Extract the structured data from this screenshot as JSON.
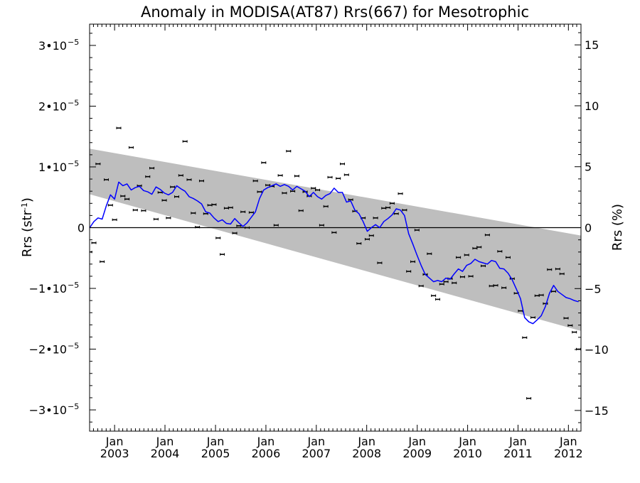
{
  "chart_data": {
    "type": "scatter",
    "title": "Anomaly in MODISA(AT87) Rrs(667) for Mesotrophic",
    "ylabel_left_base": "Rrs (str",
    "ylabel_left_sup": "-1",
    "ylabel_left_close": ")",
    "ylabel_right": "Rrs (%)",
    "xlim": [
      "2002-07-04",
      "2012-04-01"
    ],
    "ylim": [
      -3.35e-05,
      3.35e-05
    ],
    "y2lim": [
      -16.7,
      16.7
    ],
    "x_ticks": [
      {
        "date": "2003-01-01",
        "month": "Jan",
        "year": "2003"
      },
      {
        "date": "2004-01-01",
        "month": "Jan",
        "year": "2004"
      },
      {
        "date": "2005-01-01",
        "month": "Jan",
        "year": "2005"
      },
      {
        "date": "2006-01-01",
        "month": "Jan",
        "year": "2006"
      },
      {
        "date": "2007-01-01",
        "month": "Jan",
        "year": "2007"
      },
      {
        "date": "2008-01-01",
        "month": "Jan",
        "year": "2008"
      },
      {
        "date": "2009-01-01",
        "month": "Jan",
        "year": "2009"
      },
      {
        "date": "2010-01-01",
        "month": "Jan",
        "year": "2010"
      },
      {
        "date": "2011-01-01",
        "month": "Jan",
        "year": "2011"
      },
      {
        "date": "2012-01-01",
        "month": "Jan",
        "year": "2012"
      }
    ],
    "y_ticks": [
      {
        "value": 3e-05,
        "text": "3•10",
        "exp": "−5"
      },
      {
        "value": 2e-05,
        "text": "2•10",
        "exp": "−5"
      },
      {
        "value": 1e-05,
        "text": "1•10",
        "exp": "−5"
      },
      {
        "value": 0,
        "text": "0",
        "exp": ""
      },
      {
        "value": -1e-05,
        "text": "−1•10",
        "exp": "−5"
      },
      {
        "value": -2e-05,
        "text": "−2•10",
        "exp": "−5"
      },
      {
        "value": -3e-05,
        "text": "−3•10",
        "exp": "−5"
      }
    ],
    "y2_ticks": [
      {
        "value": 15,
        "text": "15"
      },
      {
        "value": 10,
        "text": "10"
      },
      {
        "value": 5,
        "text": "5"
      },
      {
        "value": 0,
        "text": "0"
      },
      {
        "value": -5,
        "text": "−5"
      },
      {
        "value": -10,
        "text": "−10"
      },
      {
        "value": -15,
        "text": "−15"
      }
    ],
    "band": {
      "x": [
        "2002-07-04",
        "2012-04-01"
      ],
      "upper": [
        1.3e-05,
        -1.3e-06
      ],
      "lower": [
        5.5e-06,
        -1.7e-05
      ]
    },
    "zero_line": 0,
    "series": [
      {
        "style": "points-with-errorbars",
        "color": "#000000",
        "error": 2e-07,
        "x": [
          "2002-07-05",
          "2002-08-04",
          "2002-09-03",
          "2002-10-03",
          "2002-11-02",
          "2002-12-02",
          "2003-01-01",
          "2003-01-31",
          "2003-03-02",
          "2003-04-01",
          "2003-05-01",
          "2003-05-31",
          "2003-06-30",
          "2003-07-30",
          "2003-08-29",
          "2003-09-28",
          "2003-10-28",
          "2003-11-27",
          "2003-12-27",
          "2004-01-26",
          "2004-02-25",
          "2004-03-26",
          "2004-04-25",
          "2004-05-25",
          "2004-06-24",
          "2004-07-24",
          "2004-08-23",
          "2004-09-22",
          "2004-10-22",
          "2004-11-21",
          "2004-12-21",
          "2005-01-20",
          "2005-02-19",
          "2005-03-21",
          "2005-04-20",
          "2005-05-20",
          "2005-06-19",
          "2005-07-19",
          "2005-08-18",
          "2005-09-17",
          "2005-10-17",
          "2005-11-16",
          "2005-12-16",
          "2006-01-15",
          "2006-02-14",
          "2006-03-16",
          "2006-04-15",
          "2006-05-15",
          "2006-06-14",
          "2006-07-14",
          "2006-08-13",
          "2006-09-12",
          "2006-10-12",
          "2006-11-11",
          "2006-12-11",
          "2007-01-10",
          "2007-02-09",
          "2007-03-11",
          "2007-04-10",
          "2007-05-10",
          "2007-06-09",
          "2007-07-09",
          "2007-08-08",
          "2007-09-07",
          "2007-10-07",
          "2007-11-06",
          "2007-12-06",
          "2008-01-05",
          "2008-02-04",
          "2008-03-05",
          "2008-04-04",
          "2008-05-04",
          "2008-06-03",
          "2008-07-03",
          "2008-08-02",
          "2008-09-01",
          "2008-10-01",
          "2008-10-31",
          "2008-11-30",
          "2008-12-30",
          "2009-01-29",
          "2009-02-28",
          "2009-03-30",
          "2009-04-29",
          "2009-05-29",
          "2009-06-28",
          "2009-07-28",
          "2009-08-27",
          "2009-09-26",
          "2009-10-26",
          "2009-11-25",
          "2009-12-25",
          "2010-01-24",
          "2010-02-23",
          "2010-03-25",
          "2010-04-24",
          "2010-05-24",
          "2010-06-23",
          "2010-07-23",
          "2010-08-22",
          "2010-09-21",
          "2010-10-21",
          "2010-11-20",
          "2010-12-20",
          "2011-01-19",
          "2011-02-18",
          "2011-03-20",
          "2011-04-19",
          "2011-05-19",
          "2011-06-18",
          "2011-07-18",
          "2011-08-17",
          "2011-09-16",
          "2011-10-16",
          "2011-11-15",
          "2011-12-15",
          "2012-01-14",
          "2012-02-13",
          "2012-03-14"
        ],
        "y": [
          -4e-06,
          -2.5e-06,
          1.05e-05,
          -5.6e-06,
          7.9e-06,
          3.7e-06,
          1.3e-06,
          1.64e-05,
          5.2e-06,
          4.7e-06,
          1.32e-05,
          2.9e-06,
          6.9e-06,
          2.8e-06,
          8.4e-06,
          9.8e-06,
          1.4e-06,
          5.8e-06,
          4.5e-06,
          1.6e-06,
          6.7e-06,
          5.1e-06,
          8.6e-06,
          1.42e-05,
          7.9e-06,
          2.4e-06,
          1e-07,
          7.7e-06,
          2.3e-06,
          3.7e-06,
          3.8e-06,
          -1.7e-06,
          -4.4e-06,
          3.2e-06,
          3.3e-06,
          -9e-07,
          3e-07,
          2.6e-06,
          0.0,
          2.5e-06,
          7.7e-06,
          5.9e-06,
          1.07e-05,
          7e-06,
          6.8e-06,
          4e-07,
          8.6e-06,
          5.7e-06,
          1.26e-05,
          6e-06,
          8.5e-06,
          2.8e-06,
          5.9e-06,
          5.2e-06,
          6.5e-06,
          6.2e-06,
          4e-07,
          3.5e-06,
          8.3e-06,
          -8e-07,
          8.1e-06,
          1.05e-05,
          8.7e-06,
          4.6e-06,
          2.7e-06,
          -2.6e-06,
          1.6e-06,
          -1.9e-06,
          -1.3e-06,
          1.6e-06,
          -5.8e-06,
          3.2e-06,
          3.3e-06,
          4e-06,
          2.3e-06,
          5.6e-06,
          2.9e-06,
          -7.2e-06,
          -5.6e-06,
          -4e-07,
          -9.6e-06,
          -7.7e-06,
          -4.3e-06,
          -1.12e-05,
          -1.18e-05,
          -9.3e-06,
          -8.9e-06,
          -8.4e-06,
          -9.1e-06,
          -4.9e-06,
          -8.1e-06,
          -4.5e-06,
          -8e-06,
          -3.4e-06,
          -3.2e-06,
          -6.3e-06,
          -1.2e-06,
          -9.6e-06,
          -9.5e-06,
          -3.9e-06,
          -9.9e-06,
          -4.9e-06,
          -8.4e-06,
          -1.08e-05,
          -1.37e-05,
          -1.81e-05,
          -2.81e-05,
          -1.48e-05,
          -1.12e-05,
          -1.11e-05,
          -1.25e-05,
          -6.9e-06,
          -1.05e-05,
          -6.8e-06,
          -7.6e-06,
          -1.49e-05,
          -1.61e-05,
          -1.72e-05,
          -2e-05
        ]
      },
      {
        "style": "line",
        "color": "#0000ff",
        "x": [
          "2002-07-05",
          "2002-08-04",
          "2002-09-03",
          "2002-10-03",
          "2002-11-02",
          "2002-12-02",
          "2003-01-01",
          "2003-01-31",
          "2003-03-02",
          "2003-04-01",
          "2003-05-01",
          "2003-05-31",
          "2003-06-30",
          "2003-07-30",
          "2003-08-29",
          "2003-09-28",
          "2003-10-28",
          "2003-11-27",
          "2003-12-27",
          "2004-01-26",
          "2004-02-25",
          "2004-03-26",
          "2004-04-25",
          "2004-05-25",
          "2004-06-24",
          "2004-07-24",
          "2004-08-23",
          "2004-09-22",
          "2004-10-22",
          "2004-11-21",
          "2004-12-21",
          "2005-01-20",
          "2005-02-19",
          "2005-03-21",
          "2005-04-20",
          "2005-05-20",
          "2005-06-19",
          "2005-07-19",
          "2005-08-18",
          "2005-09-17",
          "2005-10-17",
          "2005-11-16",
          "2005-12-16",
          "2006-01-15",
          "2006-02-14",
          "2006-03-16",
          "2006-04-15",
          "2006-05-15",
          "2006-06-14",
          "2006-07-14",
          "2006-08-13",
          "2006-09-12",
          "2006-10-12",
          "2006-11-11",
          "2006-12-11",
          "2007-01-10",
          "2007-02-09",
          "2007-03-11",
          "2007-04-10",
          "2007-05-10",
          "2007-06-09",
          "2007-07-09",
          "2007-08-08",
          "2007-09-07",
          "2007-10-07",
          "2007-11-06",
          "2007-12-06",
          "2008-01-05",
          "2008-02-04",
          "2008-03-05",
          "2008-04-04",
          "2008-05-04",
          "2008-06-03",
          "2008-07-03",
          "2008-08-02",
          "2008-09-01",
          "2008-10-01",
          "2008-10-31",
          "2008-11-30",
          "2008-12-30",
          "2009-01-29",
          "2009-02-28",
          "2009-03-30",
          "2009-04-29",
          "2009-05-29",
          "2009-06-28",
          "2009-07-28",
          "2009-08-27",
          "2009-09-26",
          "2009-10-26",
          "2009-11-25",
          "2009-12-25",
          "2010-01-24",
          "2010-02-23",
          "2010-03-25",
          "2010-04-24",
          "2010-05-24",
          "2010-06-23",
          "2010-07-23",
          "2010-08-22",
          "2010-09-21",
          "2010-10-21",
          "2010-11-20",
          "2010-12-20",
          "2011-01-19",
          "2011-02-18",
          "2011-03-20",
          "2011-04-19",
          "2011-05-19",
          "2011-06-18",
          "2011-07-18",
          "2011-08-17",
          "2011-09-16",
          "2011-10-16",
          "2011-11-15",
          "2011-12-15",
          "2012-01-14",
          "2012-02-13",
          "2012-03-14"
        ],
        "y": [
          0.0,
          1e-06,
          1.6e-06,
          1.4e-06,
          3.6e-06,
          5.4e-06,
          4.7e-06,
          7.5e-06,
          6.9e-06,
          7.2e-06,
          6.2e-06,
          6.6e-06,
          6.8e-06,
          6.1e-06,
          5.9e-06,
          5.5e-06,
          6.7e-06,
          6.3e-06,
          5.7e-06,
          5.4e-06,
          5.8e-06,
          6.9e-06,
          6.4e-06,
          6e-06,
          5.1e-06,
          4.8e-06,
          4.4e-06,
          3.9e-06,
          2.6e-06,
          2.4e-06,
          1.6e-06,
          1e-06,
          1.3e-06,
          7e-07,
          6e-07,
          1.5e-06,
          8e-07,
          2e-07,
          8e-07,
          1.7e-06,
          2.6e-06,
          4.8e-06,
          6.2e-06,
          6.6e-06,
          6.9e-06,
          7.2e-06,
          6.8e-06,
          7.1e-06,
          6.8e-06,
          6.2e-06,
          6.8e-06,
          6.4e-06,
          6e-06,
          5.1e-06,
          5.8e-06,
          5.1e-06,
          4.7e-06,
          5.3e-06,
          5.6e-06,
          6.5e-06,
          5.8e-06,
          5.8e-06,
          4.2e-06,
          4.4e-06,
          2.9e-06,
          2.3e-06,
          1e-06,
          -6e-07,
          0.0,
          5e-07,
          0.0,
          1e-06,
          1.5e-06,
          2.1e-06,
          3.1e-06,
          2.9e-06,
          2e-06,
          -1e-06,
          -2.7e-06,
          -4.5e-06,
          -6.2e-06,
          -7.7e-06,
          -8.3e-06,
          -8.9e-06,
          -8.7e-06,
          -8.9e-06,
          -8.3e-06,
          -8.5e-06,
          -7.6e-06,
          -6.8e-06,
          -7.2e-06,
          -6.2e-06,
          -5.9e-06,
          -5.2e-06,
          -5.6e-06,
          -5.8e-06,
          -6e-06,
          -5.4e-06,
          -5.6e-06,
          -6.7e-06,
          -6.8e-06,
          -7.5e-06,
          -8.6e-06,
          -1.01e-05,
          -1.17e-05,
          -1.48e-05,
          -1.55e-05,
          -1.58e-05,
          -1.52e-05,
          -1.45e-05,
          -1.3e-05,
          -1.08e-05,
          -9.5e-06,
          -1.05e-05,
          -1.1e-05,
          -1.15e-05,
          -1.17e-05,
          -1.2e-05,
          -1.22e-05
        ]
      }
    ]
  }
}
